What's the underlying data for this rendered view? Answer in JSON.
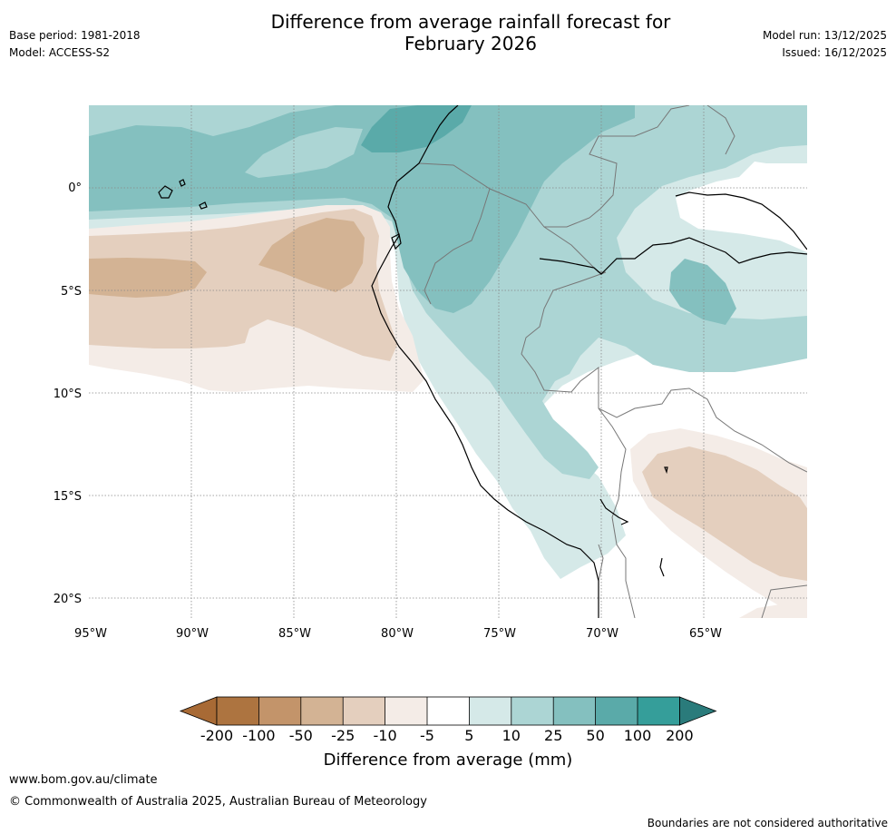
{
  "header": {
    "title_line1": "Difference from average rainfall forecast for",
    "title_line2": "February 2026",
    "base_period": "Base period: 1981-2018",
    "model": "Model: ACCESS-S2",
    "model_run": "Model run: 13/12/2025",
    "issued": "Issued: 16/12/2025"
  },
  "map": {
    "lon_labels": [
      "95°W",
      "90°W",
      "85°W",
      "80°W",
      "75°W",
      "70°W",
      "65°W"
    ],
    "lat_labels": [
      "0°",
      "5°S",
      "10°S",
      "15°S",
      "20°S"
    ]
  },
  "legend": {
    "tick_labels": [
      "-200",
      "-100",
      "-50",
      "-25",
      "-10",
      "-5",
      "5",
      "10",
      "25",
      "50",
      "100",
      "200"
    ],
    "colors": [
      "#a86a35",
      "#ad7440",
      "#c3946a",
      "#d3b394",
      "#e4cfbe",
      "#f4ece7",
      "#ffffff",
      "#d5e9e8",
      "#acd5d4",
      "#84c0bf",
      "#5aaaa9",
      "#359e9a",
      "#2a7b7b"
    ],
    "title": "Difference from average (mm)"
  },
  "footer": {
    "url": "www.bom.gov.au/climate",
    "copyright": "© Commonwealth of Australia 2025, Australian Bureau of Meteorology",
    "disclaimer": "Boundaries are not considered authoritative"
  }
}
